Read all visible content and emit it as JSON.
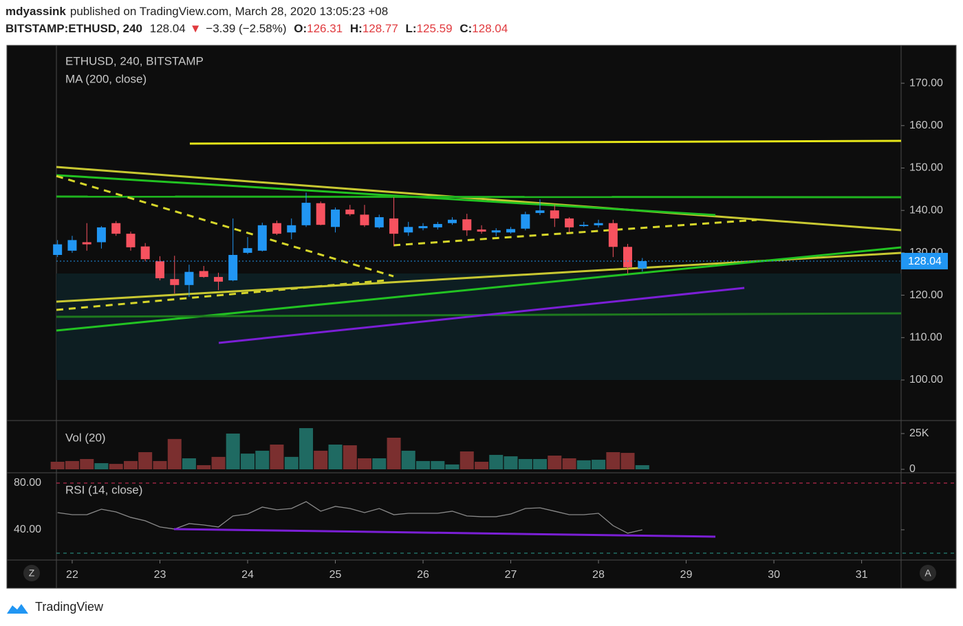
{
  "header": {
    "author": "mdyassink",
    "published": "published on TradingView.com, March 28, 2020 13:05:23 +08",
    "symbol": "BITSTAMP:ETHUSD, 240",
    "direction": "▼",
    "change": "−3.39 (−2.58%)",
    "ohlc_labels": [
      "O:",
      "H:",
      "L:",
      "C:"
    ]
  },
  "chart_data": [
    {
      "type": "candlestick",
      "title": "ETHUSD, 240, BITSTAMP",
      "subtitle": "MA (200, close)",
      "x": [
        21.833,
        22,
        22.167,
        22.333,
        22.5,
        22.667,
        22.833,
        23,
        23.167,
        23.333,
        23.5,
        23.667,
        23.833,
        24,
        24.167,
        24.333,
        24.5,
        24.667,
        24.833,
        25,
        25.167,
        25.333,
        25.5,
        25.667,
        25.833,
        26,
        26.167,
        26.333,
        26.5,
        26.667,
        26.833,
        27,
        27.167,
        27.333,
        27.5,
        27.667,
        27.833,
        28,
        28.167,
        28.333,
        28.5
      ],
      "open": [
        129.5,
        130.5,
        132.5,
        132.5,
        137,
        134.5,
        131.5,
        128,
        123.8,
        122.4,
        125.7,
        124.3,
        123.5,
        130,
        130.5,
        137,
        134.8,
        136.5,
        141.7,
        136.1,
        140.2,
        139,
        136,
        138.1,
        134.8,
        135.8,
        136,
        137,
        137.9,
        135.5,
        134.8,
        134.8,
        135.7,
        139.4,
        140,
        138.1,
        136.3,
        136.5,
        137,
        131.4,
        126.31
      ],
      "high": [
        133,
        134,
        137,
        136.3,
        137.5,
        135,
        132.3,
        129.2,
        129.3,
        127.2,
        126.9,
        125.3,
        138.1,
        133.7,
        137.1,
        137.6,
        138.1,
        144.2,
        142.1,
        140.7,
        141.3,
        141.3,
        139,
        143.1,
        137.3,
        137,
        137.3,
        138.4,
        139.2,
        136.5,
        135.8,
        136.1,
        139.7,
        142.6,
        141.3,
        138.4,
        137.3,
        137.8,
        137.8,
        132.1,
        128.77
      ],
      "low": [
        129,
        130,
        130.5,
        131,
        134,
        130.5,
        128,
        123.5,
        120.4,
        119.6,
        124.1,
        121.2,
        123.3,
        129.7,
        130.3,
        134.2,
        133.2,
        136.1,
        136.5,
        134.8,
        138.7,
        136.1,
        135.7,
        131.6,
        134,
        135.3,
        135.5,
        136.6,
        134,
        134.5,
        133.9,
        134.5,
        135.3,
        138.9,
        136.1,
        134.8,
        136.1,
        136,
        129,
        125.1,
        125.59
      ],
      "close": [
        132,
        133,
        132,
        136,
        134.5,
        131.3,
        128.5,
        124,
        122.4,
        125.5,
        124.3,
        123.2,
        129.5,
        131.1,
        136.5,
        134.5,
        136.5,
        141.8,
        136.6,
        140.2,
        139.1,
        136.5,
        138.4,
        134.5,
        136.1,
        136.3,
        136.8,
        137.8,
        135.3,
        135,
        135.3,
        135.6,
        139.1,
        140,
        138.1,
        136,
        136.6,
        137,
        131.4,
        126.6,
        128.04
      ],
      "up_color": "#2196f3",
      "down_color": "#f7525f",
      "last_price_color": "#2196f3",
      "xlim": [
        21.82,
        31.45
      ],
      "xticks": [
        22,
        23,
        24,
        25,
        26,
        27,
        28,
        29,
        30,
        31
      ],
      "ylim": [
        90.44,
        178.93
      ],
      "yticks": [
        {
          "value": 100,
          "label": "100.00"
        },
        {
          "value": 110,
          "label": "110.00"
        },
        {
          "value": 120,
          "label": "120.00"
        },
        {
          "value": 130,
          "label": "130.00"
        },
        {
          "value": 140,
          "label": "140.00"
        },
        {
          "value": 150,
          "label": "150.00"
        },
        {
          "value": 160,
          "label": "160.00"
        },
        {
          "value": 170,
          "label": "170.00"
        }
      ],
      "zone": {
        "y": [
          100,
          125.12
        ],
        "color": "#0d1e22"
      },
      "drawings": [
        {
          "color": "#e6e619",
          "dashed": false,
          "x": [
            23.341,
            31.45
          ],
          "y": [
            155.75,
            156.4
          ]
        },
        {
          "color": "#c8c832",
          "dashed": false,
          "x": [
            21.82,
            31.45
          ],
          "y": [
            150.24,
            135.33
          ]
        },
        {
          "color": "#22c322",
          "dashed": false,
          "x": [
            21.82,
            29.333
          ],
          "y": [
            148.3,
            138.9
          ]
        },
        {
          "color": "#1fb41f",
          "dashed": false,
          "x": [
            21.82,
            31.45
          ],
          "y": [
            143.27,
            143.11
          ]
        },
        {
          "color": "#d6d62a",
          "dashed": true,
          "x": [
            21.82,
            25.663
          ],
          "y": [
            148.1,
            124.47
          ]
        },
        {
          "color": "#d6d62a",
          "dashed": true,
          "x": [
            25.663,
            29.804
          ],
          "y": [
            131.77,
            137.76
          ]
        },
        {
          "color": "#d6d62a",
          "dashed": true,
          "x": [
            21.82,
            25.569
          ],
          "y": [
            116.53,
            123.5
          ]
        },
        {
          "color": "#c8c832",
          "dashed": false,
          "x": [
            21.82,
            31.45
          ],
          "y": [
            118.48,
            129.98
          ]
        },
        {
          "color": "#22c322",
          "dashed": false,
          "x": [
            21.82,
            31.45
          ],
          "y": [
            111.67,
            131.28
          ]
        },
        {
          "color": "#1e7a1e",
          "dashed": false,
          "x": [
            21.82,
            31.45
          ],
          "y": [
            114.91,
            115.72
          ]
        },
        {
          "color": "#7b1fd6",
          "dashed": false,
          "x": [
            23.671,
            29.663
          ],
          "y": [
            108.75,
            121.72
          ]
        }
      ]
    },
    {
      "type": "bar",
      "title": "Vol (20)",
      "values": [
        5300,
        5800,
        7200,
        4300,
        3800,
        5800,
        12000,
        5800,
        21200,
        7700,
        2900,
        8700,
        25000,
        11000,
        13000,
        17300,
        8700,
        28800,
        13000,
        17300,
        16800,
        7700,
        7700,
        22100,
        13000,
        5800,
        5800,
        3400,
        12500,
        5300,
        10100,
        9100,
        7200,
        7200,
        9600,
        7700,
        6300,
        6700,
        12000,
        11500,
        2900
      ],
      "colors": [
        "#7b2f2f",
        "#7b2f2f",
        "#7b2f2f",
        "#1f6a62",
        "#7b2f2f",
        "#7b2f2f",
        "#7b2f2f",
        "#7b2f2f",
        "#7b2f2f",
        "#1f6a62",
        "#7b2f2f",
        "#7b2f2f",
        "#1f6a62",
        "#1f6a62",
        "#1f6a62",
        "#7b2f2f",
        "#1f6a62",
        "#1f6a62",
        "#7b2f2f",
        "#1f6a62",
        "#7b2f2f",
        "#7b2f2f",
        "#1f6a62",
        "#7b2f2f",
        "#1f6a62",
        "#1f6a62",
        "#1f6a62",
        "#1f6a62",
        "#7b2f2f",
        "#7b2f2f",
        "#1f6a62",
        "#1f6a62",
        "#1f6a62",
        "#1f6a62",
        "#7b2f2f",
        "#7b2f2f",
        "#1f6a62",
        "#1f6a62",
        "#7b2f2f",
        "#7b2f2f",
        "#1f6a62"
      ],
      "ylim": [
        -2400,
        34100
      ],
      "yticks": [
        0,
        {
          "value": 25000,
          "label": "25K"
        }
      ]
    },
    {
      "type": "line",
      "title": "RSI (14, close)",
      "values": [
        54.7,
        52.9,
        52.9,
        57.6,
        55.3,
        50.6,
        47.7,
        42.4,
        40.6,
        45.3,
        44.1,
        42.4,
        51.8,
        53.5,
        59.4,
        57.1,
        58.2,
        64.1,
        55.9,
        60,
        58.2,
        54.7,
        58.2,
        52.9,
        54.1,
        54.1,
        54.1,
        55.9,
        51.8,
        51.2,
        51.2,
        53.5,
        58.2,
        58.8,
        55.9,
        52.9,
        52.9,
        54.1,
        43.5,
        37.1,
        40
      ],
      "color": "#8a8a8a",
      "ylim": [
        14.1,
        88.8
      ],
      "yticks": [
        {
          "value": 40,
          "label": "40.00"
        },
        {
          "value": 80,
          "label": "80.00"
        }
      ],
      "bands": [
        {
          "value": 80,
          "color": "#e0305a"
        },
        {
          "value": 20,
          "color": "#2a9d8f"
        }
      ],
      "drawings": [
        {
          "color": "#7b1fd6",
          "dashed": false,
          "x": [
            23.161,
            29.333
          ],
          "y": [
            40.6,
            34.1
          ]
        }
      ]
    }
  ],
  "footer": {
    "brand": "TradingView",
    "left_button": "Z",
    "right_button": "A"
  }
}
